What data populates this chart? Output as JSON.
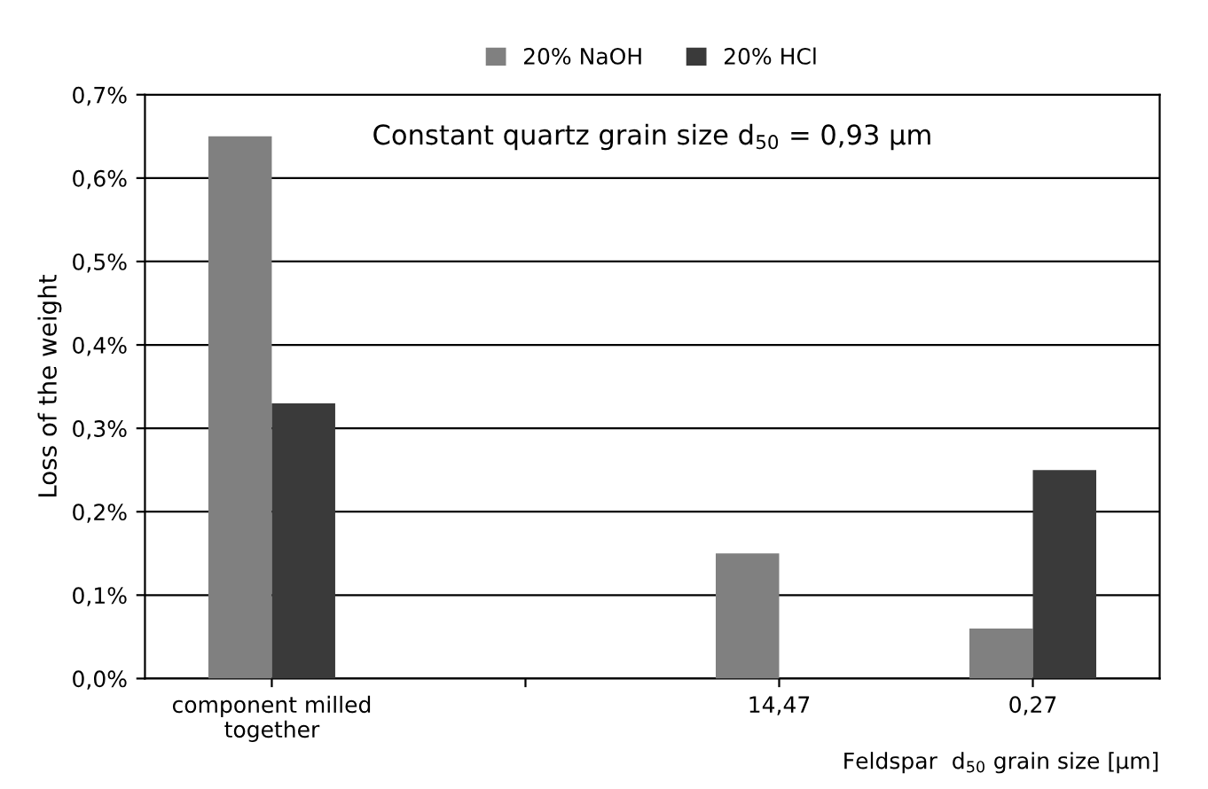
{
  "chart_data": {
    "type": "bar",
    "categories": [
      "component milled together",
      null,
      "14,47",
      "0,27"
    ],
    "series": [
      {
        "name": "20% NaOH",
        "color": "#808080",
        "values": [
          0.65,
          null,
          0.15,
          0.06
        ]
      },
      {
        "name": "20% HCl",
        "color": "#3a3a3a",
        "values": [
          0.33,
          null,
          0.0,
          0.25
        ]
      }
    ],
    "ylabel": "Loss of the weight",
    "xlabel": "Feldspar  d$_{50}$ grain size [µm]",
    "annotations": [
      "Constant quartz grain size d$_{50}$ = 0,93 µm"
    ],
    "ylim": [
      0,
      0.7
    ],
    "yticks": [
      {
        "value": 0,
        "label": "0,0%"
      },
      {
        "value": 0.1,
        "label": "0,1%"
      },
      {
        "value": 0.2,
        "label": "0,2%"
      },
      {
        "value": 0.3,
        "label": "0,3%"
      },
      {
        "value": 0.4,
        "label": "0,4%"
      },
      {
        "value": 0.5,
        "label": "0,5%"
      },
      {
        "value": 0.6,
        "label": "0,6%"
      },
      {
        "value": 0.7,
        "label": "0,7%"
      }
    ],
    "grid": "y",
    "legend": "top"
  }
}
